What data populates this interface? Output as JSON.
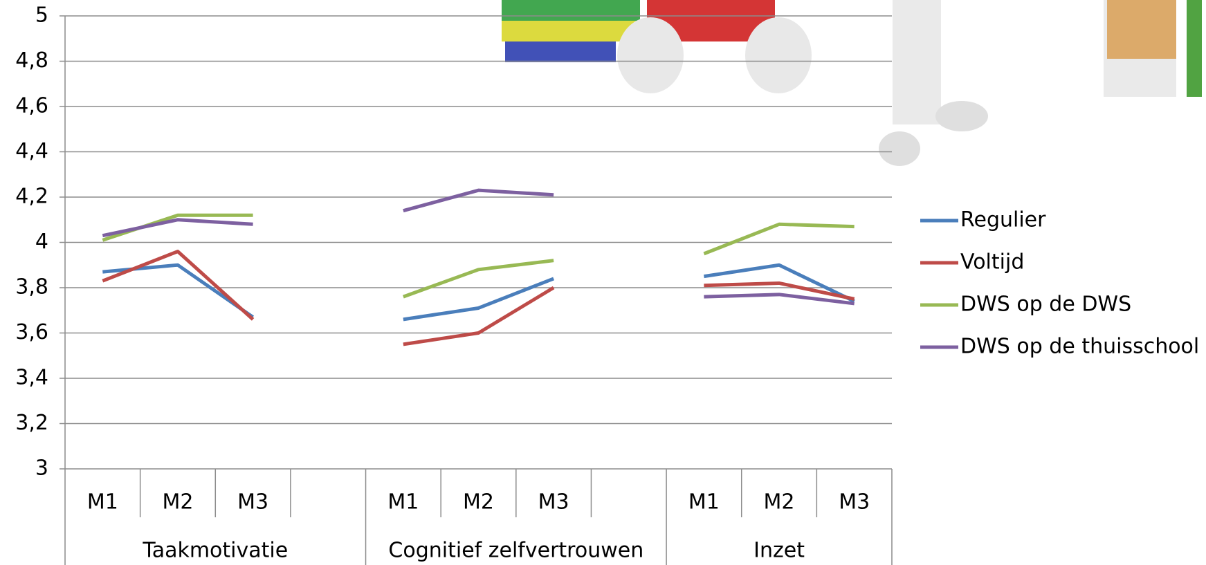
{
  "chart_data": {
    "type": "line",
    "groups": [
      {
        "label": "Taakmotivatie",
        "categories": [
          "M1",
          "M2",
          "M3",
          null
        ]
      },
      {
        "label": "Cognitief zelfvertrouwen",
        "categories": [
          "M1",
          "M2",
          "M3",
          null
        ]
      },
      {
        "label": "Inzet",
        "categories": [
          "M1",
          "M2",
          "M3"
        ]
      }
    ],
    "series": [
      {
        "name": "Regulier",
        "color": "#4a7ebb",
        "values": [
          3.87,
          3.9,
          3.67,
          null,
          3.66,
          3.71,
          3.84,
          null,
          3.85,
          3.9,
          3.74
        ]
      },
      {
        "name": "Voltijd",
        "color": "#be4b48",
        "values": [
          3.83,
          3.96,
          3.66,
          null,
          3.55,
          3.6,
          3.8,
          null,
          3.81,
          3.82,
          3.75
        ]
      },
      {
        "name": "DWS op de DWS",
        "color": "#98b954",
        "values": [
          4.01,
          4.12,
          4.12,
          null,
          3.76,
          3.88,
          3.92,
          null,
          3.95,
          4.08,
          4.07
        ]
      },
      {
        "name": "DWS op de thuisschool",
        "color": "#7d60a0",
        "values": [
          4.03,
          4.1,
          4.08,
          null,
          4.14,
          4.23,
          4.21,
          null,
          3.76,
          3.77,
          3.73
        ]
      }
    ],
    "ylim": [
      3,
      5
    ],
    "yticks": [
      3,
      {
        "value": 3.2,
        "label": "3,2"
      },
      {
        "value": 3.4,
        "label": "3,4"
      },
      {
        "value": 3.6,
        "label": "3,6"
      },
      {
        "value": 3.8,
        "label": "3,8"
      },
      4,
      {
        "value": 4.2,
        "label": "4,2"
      },
      {
        "value": 4.4,
        "label": "4,4"
      },
      {
        "value": 4.6,
        "label": "4,6"
      },
      {
        "value": 4.8,
        "label": "4,8"
      },
      5
    ],
    "grid": true,
    "legend": "right"
  }
}
